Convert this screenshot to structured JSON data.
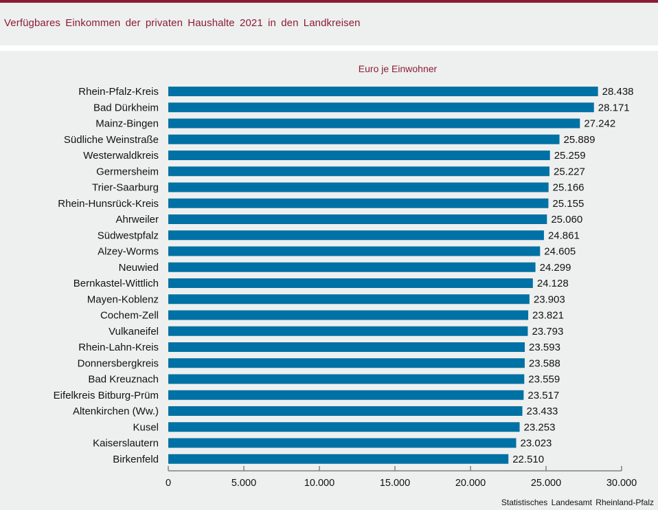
{
  "header": {
    "title": "Verfügbares Einkommen der privaten Haushalte 2021 in den Landkreisen"
  },
  "colors": {
    "brand": "#8b1c34",
    "bar": "#0071a4",
    "background": "#eef0ef"
  },
  "source": "Statistisches Landesamt Rheinland-Pfalz",
  "chart_data": {
    "type": "bar",
    "orientation": "horizontal",
    "title": "Verfügbares Einkommen der privaten Haushalte 2021 in den Landkreisen",
    "subtitle": "Euro je Einwohner",
    "xlabel": "",
    "ylabel": "",
    "xlim": [
      0,
      30000
    ],
    "xticks": [
      0,
      5000,
      10000,
      15000,
      20000,
      25000,
      30000
    ],
    "xtick_labels": [
      "0",
      "5.000",
      "10.000",
      "15.000",
      "20.000",
      "25.000",
      "30.000"
    ],
    "grid": false,
    "legend": "none",
    "categories": [
      "Rhein-Pfalz-Kreis",
      "Bad Dürkheim",
      "Mainz-Bingen",
      "Südliche Weinstraße",
      "Westerwaldkreis",
      "Germersheim",
      "Trier-Saarburg",
      "Rhein-Hunsrück-Kreis",
      "Ahrweiler",
      "Südwestpfalz",
      "Alzey-Worms",
      "Neuwied",
      "Bernkastel-Wittlich",
      "Mayen-Koblenz",
      "Cochem-Zell",
      "Vulkaneifel",
      "Rhein-Lahn-Kreis",
      "Donnersbergkreis",
      "Bad Kreuznach",
      "Eifelkreis Bitburg-Prüm",
      "Altenkirchen (Ww.)",
      "Kusel",
      "Kaiserslautern",
      "Birkenfeld"
    ],
    "values": [
      28438,
      28171,
      27242,
      25889,
      25259,
      25227,
      25166,
      25155,
      25060,
      24861,
      24605,
      24299,
      24128,
      23903,
      23821,
      23793,
      23593,
      23588,
      23559,
      23517,
      23433,
      23253,
      23023,
      22510
    ],
    "value_labels": [
      "28.438",
      "28.171",
      "27.242",
      "25.889",
      "25.259",
      "25.227",
      "25.166",
      "25.155",
      "25.060",
      "24.861",
      "24.605",
      "24.299",
      "24.128",
      "23.903",
      "23.821",
      "23.793",
      "23.593",
      "23.588",
      "23.559",
      "23.517",
      "23.433",
      "23.253",
      "23.023",
      "22.510"
    ]
  }
}
